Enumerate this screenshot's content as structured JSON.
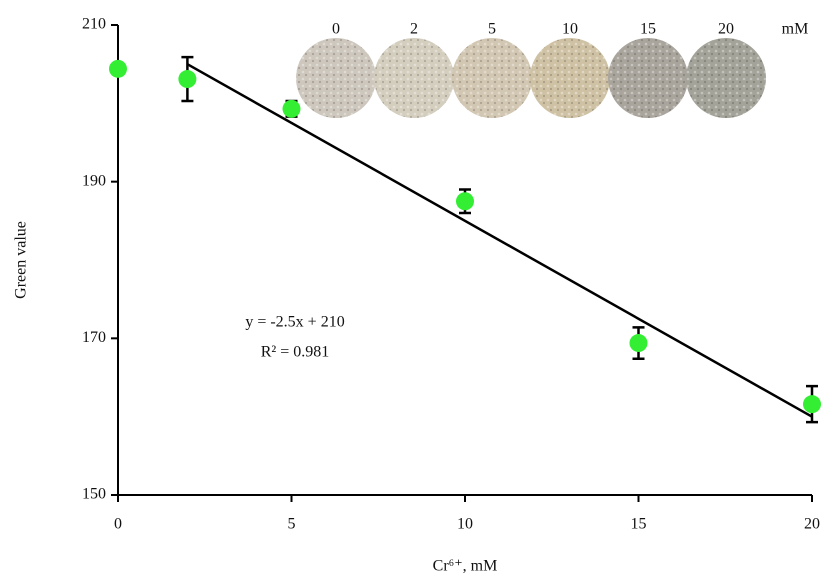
{
  "chart_data": {
    "type": "scatter",
    "x_label": "Cr⁶⁺, mM",
    "y_label": "Green value",
    "xlim": [
      0,
      20
    ],
    "ylim": [
      150,
      210
    ],
    "xticks": [
      0,
      5,
      10,
      15,
      20
    ],
    "yticks": [
      150,
      170,
      190,
      210
    ],
    "grid": false,
    "series": [
      {
        "color": "#33ee33",
        "x": [
          0,
          2,
          5,
          10,
          15,
          20
        ],
        "values": [
          204.4,
          203.1,
          199.3,
          187.5,
          169.4,
          161.6
        ],
        "errors": [
          null,
          2.8,
          1.0,
          1.5,
          2.0,
          2.3
        ]
      }
    ],
    "trendline": {
      "slope": -2.5,
      "intercept": 210,
      "x_range": [
        2,
        20
      ],
      "color": "#000000"
    },
    "equation": "y = -2.5x + 210",
    "r_squared": "R² = 0.981",
    "swatches": [
      {
        "label": "0",
        "color": "#cdc7bd"
      },
      {
        "label": "2",
        "color": "#d4cebf"
      },
      {
        "label": "5",
        "color": "#d2c7b2"
      },
      {
        "label": "10",
        "color": "#cfc2a4"
      },
      {
        "label": "15",
        "color": "#a9a59d"
      },
      {
        "label": "20",
        "color": "#a3a399"
      }
    ],
    "swatch_unit": "mM"
  }
}
